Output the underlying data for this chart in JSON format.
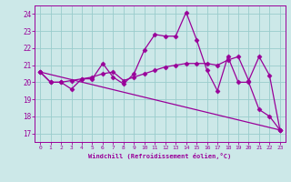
{
  "xlabel": "Windchill (Refroidissement éolien,°C)",
  "bg_color": "#cce8e8",
  "line_color": "#990099",
  "grid_color": "#99cccc",
  "xlim": [
    -0.5,
    23.5
  ],
  "ylim": [
    16.5,
    24.5
  ],
  "yticks": [
    17,
    18,
    19,
    20,
    21,
    22,
    23,
    24
  ],
  "xticks": [
    0,
    1,
    2,
    3,
    4,
    5,
    6,
    7,
    8,
    9,
    10,
    11,
    12,
    13,
    14,
    15,
    16,
    17,
    18,
    19,
    20,
    21,
    22,
    23
  ],
  "line1_x": [
    0,
    1,
    2,
    3,
    4,
    5,
    6,
    7,
    8,
    9,
    10,
    11,
    12,
    13,
    14,
    15,
    16,
    17,
    18,
    19,
    20,
    21,
    22,
    23
  ],
  "line1_y": [
    20.6,
    20.0,
    20.0,
    19.6,
    20.2,
    20.2,
    21.1,
    20.3,
    19.9,
    20.5,
    21.9,
    22.8,
    22.7,
    22.7,
    24.1,
    22.5,
    20.7,
    19.5,
    21.5,
    20.0,
    20.0,
    18.4,
    18.0,
    17.2
  ],
  "line2_x": [
    0,
    1,
    2,
    3,
    4,
    5,
    6,
    7,
    8,
    9,
    10,
    11,
    12,
    13,
    14,
    15,
    16,
    17,
    18,
    19,
    20,
    21,
    22,
    23
  ],
  "line2_y": [
    20.6,
    20.0,
    20.0,
    20.1,
    20.2,
    20.3,
    20.5,
    20.6,
    20.1,
    20.3,
    20.5,
    20.7,
    20.9,
    21.0,
    21.1,
    21.1,
    21.1,
    21.0,
    21.3,
    21.5,
    20.1,
    21.5,
    20.4,
    17.2
  ],
  "line3_x": [
    0,
    23
  ],
  "line3_y": [
    20.6,
    17.2
  ],
  "markersize": 2.5
}
